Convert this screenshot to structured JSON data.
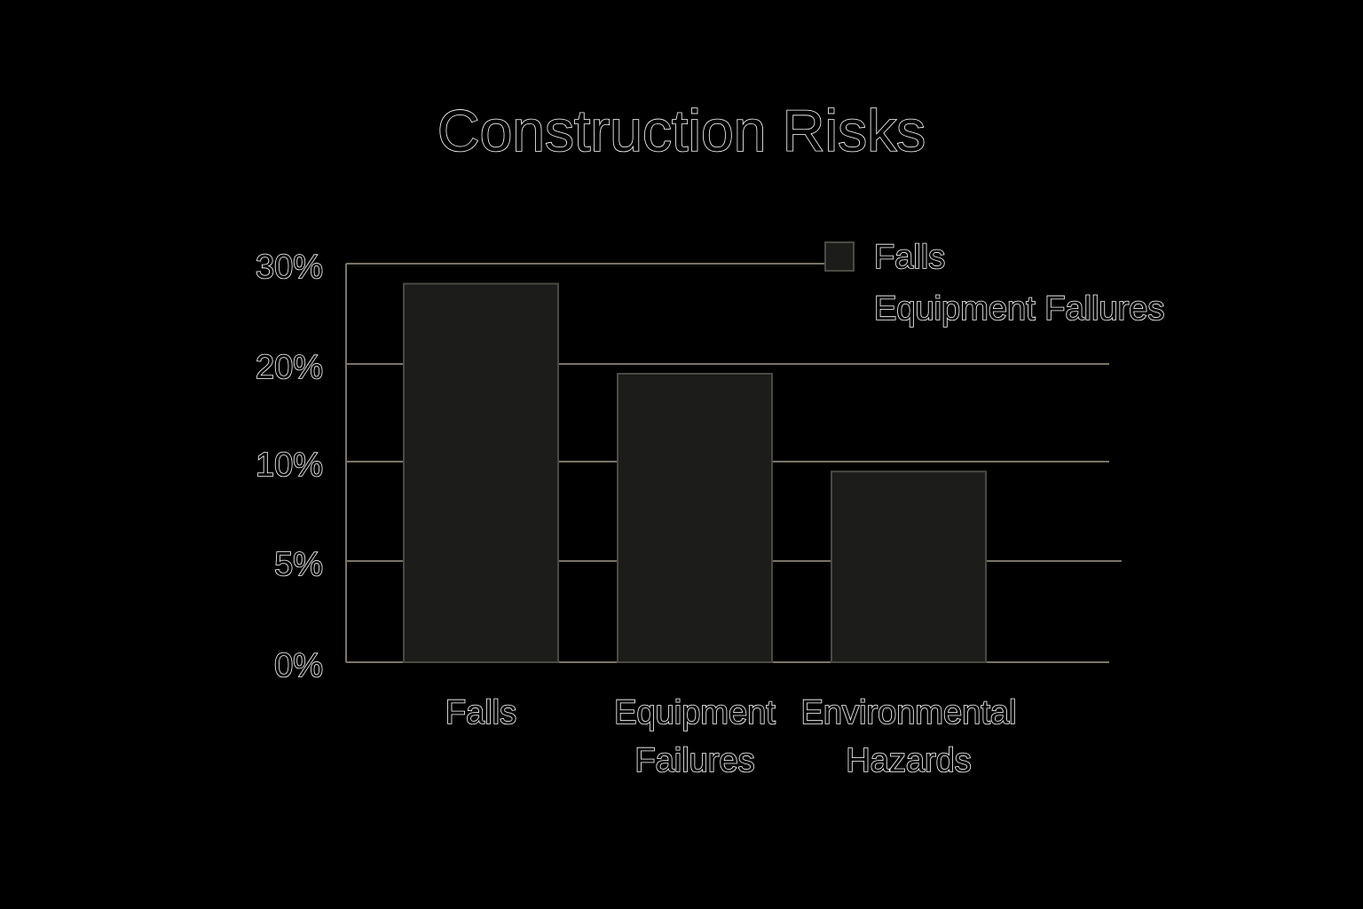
{
  "colors": {
    "background": "#000000",
    "bar_fill": "#1c1c1a",
    "bar_stroke": "#4a4a44",
    "grid": "#7a7468",
    "text_outline": "#ffffff"
  },
  "chart_data": {
    "type": "bar",
    "title": "Construction Risks",
    "categories": [
      "Falls",
      "Equipment Failures",
      "Environmental Hazards"
    ],
    "category_label_lines": [
      [
        "Falls"
      ],
      [
        "Equipment",
        "Failures"
      ],
      [
        "Environmental",
        "Hazards"
      ]
    ],
    "series": [
      {
        "name": "Falls",
        "values": [
          28,
          19,
          9.5
        ]
      }
    ],
    "legend": {
      "placement": "top-right",
      "entries": [
        "Falls",
        "Equipment Fallures"
      ]
    },
    "y_ticks": [
      {
        "value": 0,
        "label": "0%"
      },
      {
        "value": 5,
        "label": "5%"
      },
      {
        "value": 10,
        "label": "10%"
      },
      {
        "value": 20,
        "label": "20%"
      },
      {
        "value": 30,
        "label": "30%"
      }
    ],
    "ylim": [
      0,
      30
    ],
    "grid": true,
    "xlabel": "",
    "ylabel": ""
  }
}
